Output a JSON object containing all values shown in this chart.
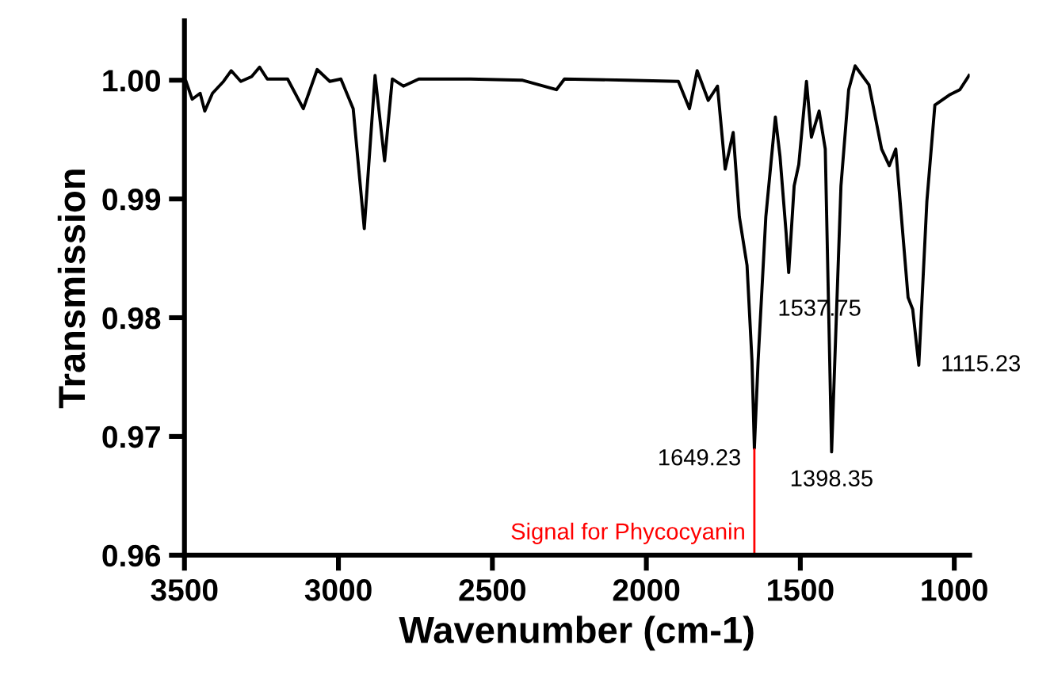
{
  "chart_data": {
    "type": "line",
    "xlabel": "Wavenumber (cm-1)",
    "ylabel": "Transmission",
    "xlim": [
      3500,
      950
    ],
    "xticks": [
      3500,
      3000,
      2500,
      2000,
      1500,
      1000
    ],
    "ylim": [
      0.96,
      1.005
    ],
    "yticks": [
      {
        "value": 0.96,
        "label": "0.96"
      },
      {
        "value": 0.97,
        "label": "0.97"
      },
      {
        "value": 0.98,
        "label": "0.98"
      },
      {
        "value": 0.99,
        "label": "0.99"
      },
      {
        "value": 1.0,
        "label": "1.00"
      }
    ],
    "grid": false,
    "marker": "none",
    "line_style": "solid",
    "series": [
      {
        "color": "#000000",
        "x": [
          3495,
          3475,
          3449,
          3434,
          3409,
          3373,
          3348,
          3317,
          3282,
          3256,
          3231,
          3165,
          3114,
          3069,
          3028,
          2992,
          2952,
          2916,
          2881,
          2850,
          2825,
          2789,
          2739,
          2571,
          2404,
          2292,
          2266,
          2063,
          1896,
          1860,
          1835,
          1799,
          1769,
          1744,
          1718,
          1698,
          1673,
          1657,
          1649.23,
          1637,
          1612,
          1581,
          1566,
          1546,
          1537.75,
          1520,
          1505,
          1480,
          1464,
          1439,
          1419,
          1398.35,
          1368,
          1343,
          1322,
          1277,
          1236,
          1211,
          1190,
          1150,
          1135,
          1115.23,
          1089,
          1063,
          1013,
          982,
          952
        ],
        "values": [
          0.9999,
          0.9984,
          0.9989,
          0.9974,
          0.9989,
          0.9999,
          1.0008,
          0.9999,
          1.0003,
          1.0011,
          1.0001,
          1.0001,
          0.9976,
          1.0009,
          0.9999,
          1.0001,
          0.9976,
          0.9875,
          1.0004,
          0.9932,
          1.0001,
          0.9995,
          1.0001,
          1.0001,
          1.0,
          0.9992,
          1.0001,
          1.0,
          0.9999,
          0.9976,
          1.0008,
          0.9983,
          0.9995,
          0.9925,
          0.9956,
          0.9885,
          0.9844,
          0.9764,
          0.969,
          0.9764,
          0.9885,
          0.9969,
          0.9936,
          0.9871,
          0.9838,
          0.9911,
          0.9929,
          0.9999,
          0.9952,
          0.9974,
          0.9942,
          0.9687,
          0.9911,
          0.9992,
          1.0012,
          0.9996,
          0.9942,
          0.9928,
          0.9942,
          0.9817,
          0.9807,
          0.976,
          0.9898,
          0.9979,
          0.9988,
          0.9992,
          1.0004
        ]
      }
    ],
    "annotations": [
      {
        "text": "1649.23",
        "x": 1649.23,
        "y": 0.969
      },
      {
        "text": "1537.75",
        "x": 1537.75,
        "y": 0.9838
      },
      {
        "text": "1398.35",
        "x": 1398.35,
        "y": 0.9687
      },
      {
        "text": "1115.23",
        "x": 1115.23,
        "y": 0.976
      }
    ],
    "ref_lines": [
      {
        "axis": "x",
        "value": 1649.23,
        "label": "Signal for Phycocyanin",
        "color": "#ff0000",
        "line_style": "solid"
      }
    ]
  }
}
